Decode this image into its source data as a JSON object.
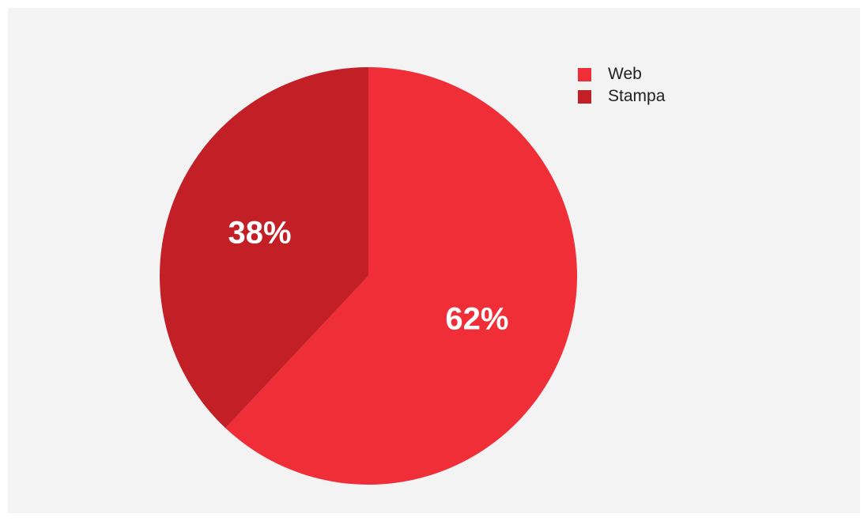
{
  "chart_data": {
    "type": "pie",
    "title": "",
    "legend_position": "top-right",
    "slices": [
      {
        "name": "Web",
        "value": 62,
        "label": "62%",
        "color": "#ef2e37"
      },
      {
        "name": "Stampa",
        "value": 38,
        "label": "38%",
        "color": "#c21f27"
      }
    ]
  },
  "legend": {
    "items": [
      {
        "label": "Web",
        "color": "#ef2e37"
      },
      {
        "label": "Stampa",
        "color": "#c21f27"
      }
    ]
  },
  "background_color": "#f3f3f3"
}
